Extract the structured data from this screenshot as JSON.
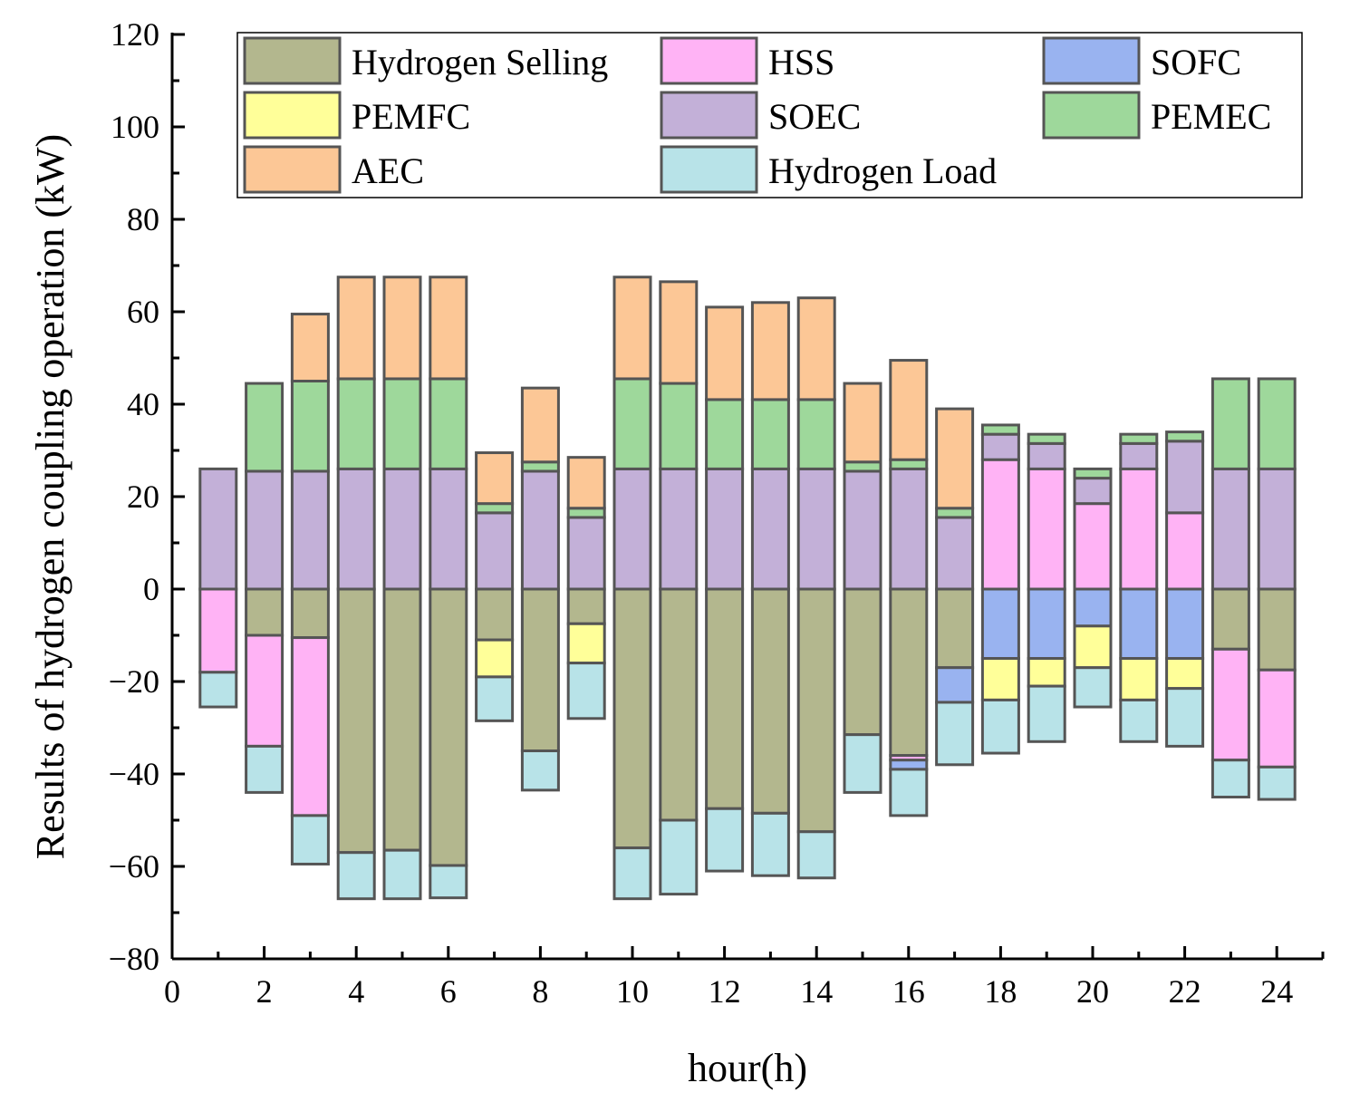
{
  "chart_data": {
    "type": "bar",
    "stacked": true,
    "xlabel": "hour(h)",
    "ylabel": "Results of hydrogen coupling operation (kW)",
    "xlim": [
      0,
      25
    ],
    "ylim": [
      -80,
      120
    ],
    "xticks": [
      "0",
      "2",
      "4",
      "6",
      "8",
      "10",
      "12",
      "14",
      "16",
      "18",
      "20",
      "22",
      "24"
    ],
    "yticks": [
      "120",
      "100",
      "80",
      "60",
      "40",
      "20",
      "0",
      "−20",
      "−40",
      "−60",
      "−80"
    ],
    "grid": false,
    "legend_position": "top",
    "categories": [
      1,
      2,
      3,
      4,
      5,
      6,
      7,
      8,
      9,
      10,
      11,
      12,
      13,
      14,
      15,
      16,
      17,
      18,
      19,
      20,
      21,
      22,
      23,
      24
    ],
    "series": [
      {
        "name": "Hydrogen Selling",
        "color": "#b3b78e",
        "values": [
          0,
          -10,
          -10.5,
          -57,
          -56.5,
          -59.8,
          -11,
          -35,
          -7.5,
          -56,
          -50,
          -47.5,
          -48.5,
          -52.5,
          -31.5,
          -36,
          -17,
          0,
          0,
          0,
          0,
          0,
          -13,
          -17.5
        ]
      },
      {
        "name": "HSS",
        "color": "#ffb3f5",
        "values": [
          -18,
          -24,
          -38.5,
          0,
          0,
          0,
          0,
          0,
          0,
          0,
          0,
          0,
          0,
          0,
          0,
          -1,
          0,
          28,
          26,
          18.5,
          26,
          16.5,
          -24,
          -21
        ]
      },
      {
        "name": "SOFC",
        "color": "#99b3f0",
        "values": [
          0,
          0,
          0,
          0,
          0,
          0,
          0,
          0,
          0,
          0,
          0,
          0,
          0,
          0,
          0,
          -2,
          -7.5,
          -15,
          -15,
          -8,
          -15,
          -15,
          0,
          0
        ]
      },
      {
        "name": "PEMFC",
        "color": "#ffff99",
        "values": [
          0,
          0,
          0,
          0,
          0,
          0,
          -8,
          0,
          -8.5,
          0,
          0,
          0,
          0,
          0,
          0,
          0,
          0,
          -9,
          -6,
          -9,
          -9,
          -6.5,
          0,
          0
        ]
      },
      {
        "name": "SOEC",
        "color": "#c3b0d8",
        "values": [
          26,
          25.5,
          25.5,
          26,
          26,
          26,
          16.5,
          25.5,
          15.5,
          26,
          26,
          26,
          26,
          26,
          25.5,
          26,
          15.5,
          5.5,
          5.5,
          5.5,
          5.5,
          15.5,
          26,
          26
        ]
      },
      {
        "name": "PEMEC",
        "color": "#9ed89b",
        "values": [
          0,
          19,
          19.5,
          19.5,
          19.5,
          19.5,
          2,
          2,
          2,
          19.5,
          18.5,
          15,
          15,
          15,
          2,
          2,
          2,
          2,
          2,
          2,
          2,
          2,
          19.5,
          19.5
        ]
      },
      {
        "name": "AEC",
        "color": "#fcc796",
        "values": [
          0,
          0,
          14.5,
          22,
          22,
          22,
          11,
          16,
          11,
          22,
          22,
          20,
          21,
          22,
          17,
          21.5,
          21.5,
          0,
          0,
          0,
          0,
          0,
          0,
          0
        ]
      },
      {
        "name": "Hydrogen Load",
        "color": "#b8e3e8",
        "values": [
          -7.5,
          -10,
          -10.5,
          -10,
          -10.5,
          -7,
          -9.5,
          -8.5,
          -12,
          -11,
          -16,
          -13.5,
          -13.5,
          -10,
          -12.5,
          -10,
          -13.5,
          -11.5,
          -12,
          -8.5,
          -9,
          -12.5,
          -8,
          -7
        ]
      }
    ]
  }
}
